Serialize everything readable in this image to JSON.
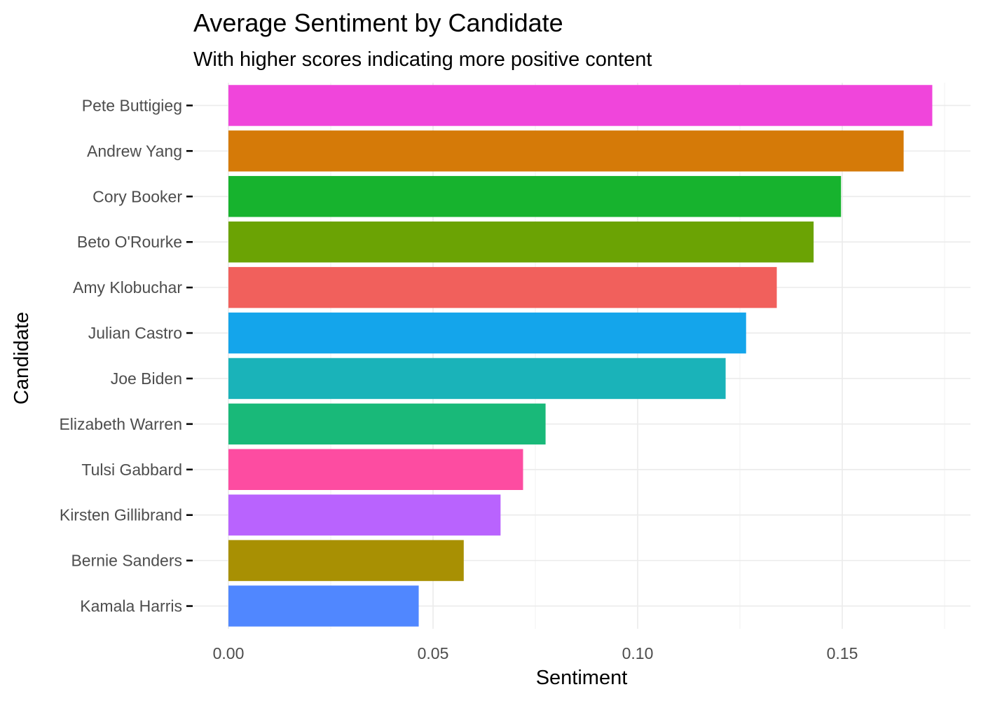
{
  "chart_data": {
    "type": "bar",
    "orientation": "horizontal",
    "title": "Average Sentiment by Candidate",
    "subtitle": "With higher scores indicating more positive content",
    "xlabel": "Sentiment",
    "ylabel": "Candidate",
    "xlim": [
      0,
      0.175
    ],
    "x_ticks": [
      0,
      0.05,
      0.1,
      0.15
    ],
    "x_tick_labels": [
      "0.00",
      "0.05",
      "0.10",
      "0.15"
    ],
    "grid": true,
    "legend": "none",
    "categories": [
      "Pete Buttigieg",
      "Andrew Yang",
      "Cory Booker",
      "Beto O'Rourke",
      "Amy Klobuchar",
      "Julian Castro",
      "Joe Biden",
      "Elizabeth Warren",
      "Tulsi Gabbard",
      "Kirsten Gillibrand",
      "Bernie Sanders",
      "Kamala Harris"
    ],
    "values": [
      0.172,
      0.165,
      0.1497,
      0.143,
      0.134,
      0.1265,
      0.1215,
      0.0775,
      0.072,
      0.0665,
      0.0575,
      0.0465
    ],
    "colors": [
      "#F045DB",
      "#D57A08",
      "#17B32E",
      "#6BA304",
      "#F1605C",
      "#14A5EB",
      "#1AB3B9",
      "#19B979",
      "#FD4CA1",
      "#B963FE",
      "#A89003",
      "#5087FF"
    ]
  }
}
